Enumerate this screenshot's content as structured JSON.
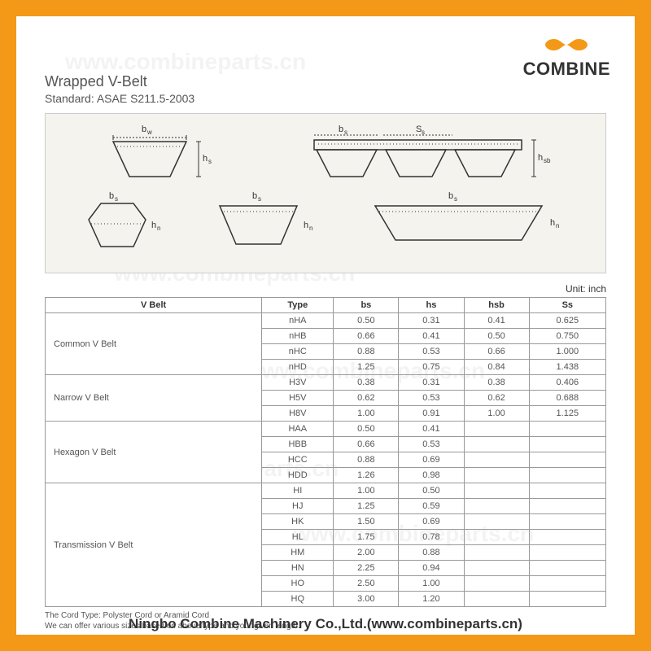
{
  "logo": {
    "brand": "COMBINE",
    "infinity_color": "#f39817"
  },
  "watermark": "www.combineparts.cn",
  "header": {
    "title": "Wrapped V-Belt",
    "subtitle": "Standard: ASAE S211.5-2003"
  },
  "diagram": {
    "labels": {
      "bw": "bw",
      "bs": "bs",
      "ss": "Ss",
      "hs": "hs",
      "hsb": "hsb",
      "hn": "hn"
    },
    "fill": "#f5f3ee",
    "stroke": "#333"
  },
  "unit": {
    "label": "Unit:",
    "value": "inch"
  },
  "table": {
    "headers": [
      "V Belt",
      "Type",
      "bs",
      "hs",
      "hsb",
      "Ss"
    ],
    "groups": [
      {
        "category": "Common V Belt",
        "rows": [
          [
            "nHA",
            "0.50",
            "0.31",
            "0.41",
            "0.625"
          ],
          [
            "nHB",
            "0.66",
            "0.41",
            "0.50",
            "0.750"
          ],
          [
            "nHC",
            "0.88",
            "0.53",
            "0.66",
            "1.000"
          ],
          [
            "nHD",
            "1.25",
            "0.75",
            "0.84",
            "1.438"
          ]
        ]
      },
      {
        "category": "Narrow V Belt",
        "rows": [
          [
            "H3V",
            "0.38",
            "0.31",
            "0.38",
            "0.406"
          ],
          [
            "H5V",
            "0.62",
            "0.53",
            "0.62",
            "0.688"
          ],
          [
            "H8V",
            "1.00",
            "0.91",
            "1.00",
            "1.125"
          ]
        ]
      },
      {
        "category": "Hexagon V Belt",
        "rows": [
          [
            "HAA",
            "0.50",
            "0.41",
            "",
            ""
          ],
          [
            "HBB",
            "0.66",
            "0.53",
            "",
            ""
          ],
          [
            "HCC",
            "0.88",
            "0.69",
            "",
            ""
          ],
          [
            "HDD",
            "1.26",
            "0.98",
            "",
            ""
          ]
        ]
      },
      {
        "category": "Transmission V Belt",
        "rows": [
          [
            "HI",
            "1.00",
            "0.50",
            "",
            ""
          ],
          [
            "HJ",
            "1.25",
            "0.59",
            "",
            ""
          ],
          [
            "HK",
            "1.50",
            "0.69",
            "",
            ""
          ],
          [
            "HL",
            "1.75",
            "0.78",
            "",
            ""
          ],
          [
            "HM",
            "2.00",
            "0.88",
            "",
            ""
          ],
          [
            "HN",
            "2.25",
            "0.94",
            "",
            ""
          ],
          [
            "HO",
            "2.50",
            "1.00",
            "",
            ""
          ],
          [
            "HQ",
            "3.00",
            "1.20",
            "",
            ""
          ]
        ]
      }
    ]
  },
  "footnote": {
    "line1": "The Cord Type: Polyster Cord or Aramid Cord",
    "line2": "We can offer various sizes based on above type and your given length."
  },
  "footer": "Ningbo Combine Machinery Co.,Ltd.(www.combineparts.cn)"
}
